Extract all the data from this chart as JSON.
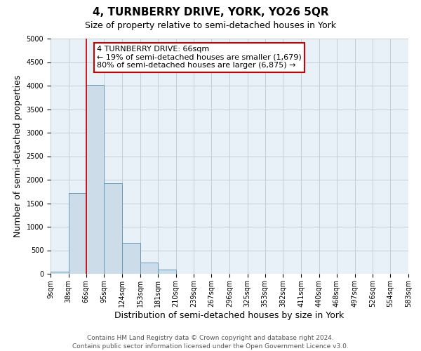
{
  "title": "4, TURNBERRY DRIVE, YORK, YO26 5QR",
  "subtitle": "Size of property relative to semi-detached houses in York",
  "xlabel": "Distribution of semi-detached houses by size in York",
  "ylabel": "Number of semi-detached properties",
  "bar_edges": [
    9,
    38,
    66,
    95,
    124,
    153,
    181,
    210,
    239,
    267,
    296,
    325,
    353,
    382,
    411,
    440,
    468,
    497,
    526,
    554,
    583
  ],
  "bar_heights": [
    50,
    1720,
    4020,
    1930,
    660,
    245,
    85,
    0,
    0,
    0,
    0,
    0,
    0,
    0,
    0,
    0,
    0,
    0,
    0,
    0
  ],
  "bar_color": "#ccdce8",
  "bar_edgecolor": "#6699bb",
  "property_size": 66,
  "vline_color": "#cc0000",
  "annotation_line1": "4 TURNBERRY DRIVE: 66sqm",
  "annotation_line2": "← 19% of semi-detached houses are smaller (1,679)",
  "annotation_line3": "80% of semi-detached houses are larger (6,875) →",
  "annotation_box_edgecolor": "#cc0000",
  "annotation_box_facecolor": "#ffffff",
  "ylim": [
    0,
    5000
  ],
  "yticks": [
    0,
    500,
    1000,
    1500,
    2000,
    2500,
    3000,
    3500,
    4000,
    4500,
    5000
  ],
  "xtick_labels": [
    "9sqm",
    "38sqm",
    "66sqm",
    "95sqm",
    "124sqm",
    "153sqm",
    "181sqm",
    "210sqm",
    "239sqm",
    "267sqm",
    "296sqm",
    "325sqm",
    "353sqm",
    "382sqm",
    "411sqm",
    "440sqm",
    "468sqm",
    "497sqm",
    "526sqm",
    "554sqm",
    "583sqm"
  ],
  "footer_line1": "Contains HM Land Registry data © Crown copyright and database right 2024.",
  "footer_line2": "Contains public sector information licensed under the Open Government Licence v3.0.",
  "bg_color": "#ffffff",
  "plot_bg_color": "#e8f0f8",
  "grid_color": "#c0c8d0",
  "title_fontsize": 11,
  "subtitle_fontsize": 9,
  "axis_label_fontsize": 9,
  "tick_fontsize": 7,
  "annotation_fontsize": 8,
  "footer_fontsize": 6.5
}
